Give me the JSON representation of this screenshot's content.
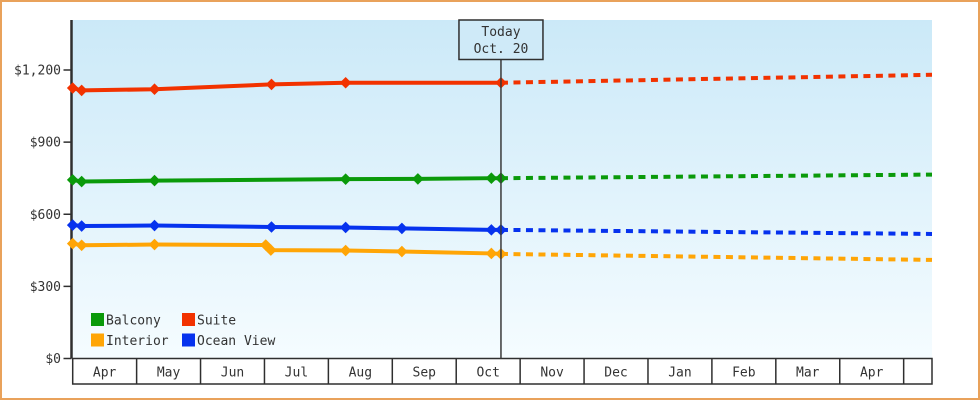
{
  "colors": {
    "frame_border": "#e9a25b",
    "plot_bg_top": "#cbe9f8",
    "plot_bg_bottom": "#f5fcff",
    "axis": "#2f2f2f",
    "text": "#333333",
    "today_line": "#3a3a3a",
    "today_box_bg": "#cfeaf8",
    "month_row_bg": "#ffffff"
  },
  "chart_data": {
    "type": "line",
    "title": "",
    "legend_position": "bottom-left-inside",
    "y_axis": {
      "tick_labels": [
        "$0",
        "$300",
        "$600",
        "$900",
        "$1,200"
      ],
      "tick_values": [
        0,
        300,
        600,
        900,
        1200
      ],
      "range": [
        0,
        1250
      ]
    },
    "x_axis": {
      "month_labels": [
        "Apr",
        "May",
        "Jun",
        "Jul",
        "Aug",
        "Sep",
        "Oct",
        "Nov",
        "Dec",
        "Jan",
        "Feb",
        "Mar",
        "Apr"
      ]
    },
    "today_marker": {
      "line1": "Today",
      "line2": "Oct. 20",
      "month_fraction": 6.7
    },
    "series": [
      {
        "name": "Balcony",
        "color": "#0a9a0a",
        "points_month_price": [
          [
            0,
            743
          ],
          [
            0.14,
            736
          ],
          [
            1.28,
            740
          ],
          [
            4.27,
            746
          ],
          [
            5.4,
            747
          ],
          [
            6.55,
            750
          ],
          [
            6.7,
            750
          ]
        ],
        "forecast_end": [
          13.45,
          765
        ]
      },
      {
        "name": "Suite",
        "color": "#f23200",
        "points_month_price": [
          [
            0,
            1125
          ],
          [
            0.14,
            1115
          ],
          [
            1.28,
            1120
          ],
          [
            3.11,
            1140
          ],
          [
            4.27,
            1147
          ],
          [
            6.7,
            1147
          ]
        ],
        "forecast_end": [
          13.45,
          1180
        ]
      },
      {
        "name": "Interior",
        "color": "#ffa506",
        "points_month_price": [
          [
            0,
            478
          ],
          [
            0.14,
            471
          ],
          [
            1.28,
            474
          ],
          [
            3.02,
            472
          ],
          [
            3.1,
            451
          ],
          [
            4.27,
            449
          ],
          [
            5.15,
            445
          ],
          [
            6.55,
            437
          ],
          [
            6.7,
            435
          ]
        ],
        "forecast_end": [
          13.45,
          410
        ]
      },
      {
        "name": "Ocean View",
        "color": "#0632ee",
        "points_month_price": [
          [
            0,
            555
          ],
          [
            0.14,
            551
          ],
          [
            1.28,
            553
          ],
          [
            3.11,
            547
          ],
          [
            4.27,
            545
          ],
          [
            5.15,
            541
          ],
          [
            6.55,
            535
          ],
          [
            6.7,
            535
          ]
        ],
        "forecast_end": [
          13.45,
          518
        ]
      }
    ],
    "legend_rows": [
      [
        0,
        1
      ],
      [
        2,
        3
      ]
    ]
  }
}
